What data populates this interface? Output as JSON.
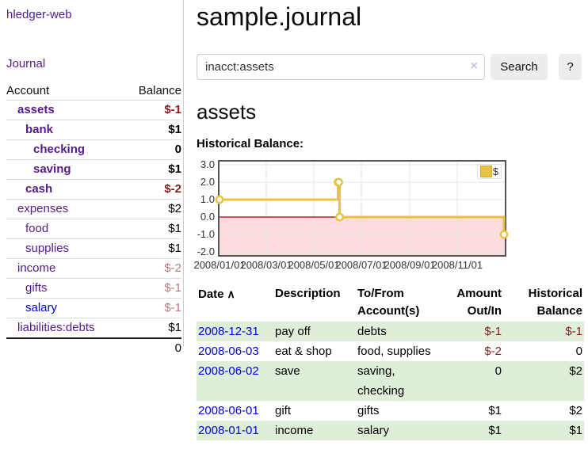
{
  "app": {
    "brand": "hledger-web",
    "nav_journal": "Journal"
  },
  "colors": {
    "link_purple": "#551A8B",
    "link_blue": "#0000e8",
    "negative_red": "#8b1a1a",
    "negative_light_red": "#bb7878",
    "row_green": "#deeed9",
    "series_gold": "#E8C240",
    "negative_region_pink": "#FBDBDB",
    "zero_line_red": "#A40000"
  },
  "sidebar": {
    "accounts_header": {
      "account": "Account",
      "balance": "Balance"
    },
    "accounts": [
      {
        "name": "assets",
        "balance": "$-1",
        "indent": 1,
        "bold": true,
        "balance_style": "negative"
      },
      {
        "name": "bank",
        "balance": "$1",
        "indent": 2,
        "bold": true,
        "balance_style": "normal"
      },
      {
        "name": "checking",
        "balance": "0",
        "indent": 3,
        "bold": true,
        "balance_style": "normal"
      },
      {
        "name": "saving",
        "balance": "$1",
        "indent": 3,
        "bold": true,
        "balance_style": "normal"
      },
      {
        "name": "cash",
        "balance": "$-2",
        "indent": 2,
        "bold": true,
        "balance_style": "negative"
      },
      {
        "name": "expenses",
        "balance": "$2",
        "indent": 1,
        "bold": false,
        "balance_style": "normal"
      },
      {
        "name": "food",
        "balance": "$1",
        "indent": 2,
        "bold": false,
        "balance_style": "normal"
      },
      {
        "name": "supplies",
        "balance": "$1",
        "indent": 2,
        "bold": false,
        "balance_style": "normal"
      },
      {
        "name": "income",
        "balance": "$-2",
        "indent": 1,
        "bold": false,
        "balance_style": "negative-light"
      },
      {
        "name": "gifts",
        "balance": "$-1",
        "indent": 2,
        "bold": false,
        "balance_style": "negative-light"
      },
      {
        "name": "salary",
        "balance": "$-1",
        "indent": 2,
        "bold": false,
        "balance_style": "negative-light",
        "link_style": "unvisited"
      },
      {
        "name": "liabilities:debts",
        "balance": "$1",
        "indent": 1,
        "bold": false,
        "balance_style": "normal"
      }
    ],
    "total": "0"
  },
  "main": {
    "title": "sample.journal",
    "search": {
      "value": "inacct:assets",
      "clear_icon": "×",
      "search_button": "Search",
      "help_button": "?"
    },
    "account_heading": "assets",
    "chart_title": "Historical Balance:"
  },
  "chart_data": {
    "type": "line",
    "step": true,
    "title": "Historical Balance:",
    "legend": {
      "label": "$",
      "position": "top-right"
    },
    "series": [
      {
        "name": "$",
        "color": "#E8C240",
        "points": [
          {
            "x": "2008-01-01",
            "y": 1
          },
          {
            "x": "2008-06-01",
            "y": 2
          },
          {
            "x": "2008-06-02",
            "y": 2
          },
          {
            "x": "2008-06-03",
            "y": 0
          },
          {
            "x": "2008-12-31",
            "y": -1
          }
        ]
      }
    ],
    "xlim": [
      "2008-01-01",
      "2009-01-01"
    ],
    "ylim": [
      -2,
      3
    ],
    "x_ticks": [
      {
        "label": "2008/01/01",
        "date": "2008-01-01"
      },
      {
        "label": "2008/03/01",
        "date": "2008-03-01"
      },
      {
        "label": "2008/05/01",
        "date": "2008-05-01"
      },
      {
        "label": "2008/07/01",
        "date": "2008-07-01"
      },
      {
        "label": "2008/09/01",
        "date": "2008-09-01"
      },
      {
        "label": "2008/11/01",
        "date": "2008-11-01"
      }
    ],
    "y_ticks": [
      {
        "label": "3.0",
        "value": 3
      },
      {
        "label": "2.0",
        "value": 2
      },
      {
        "label": "1.0",
        "value": 1
      },
      {
        "label": "0.0",
        "value": 0
      },
      {
        "label": "-1.0",
        "value": -1
      },
      {
        "label": "-2.0",
        "value": -2
      }
    ],
    "grid": true,
    "negative_region_color": "#FBDBDB",
    "zero_line_color": "#A40000"
  },
  "register": {
    "headers": {
      "date": "Date",
      "sort_icon": "∧",
      "description": "Description",
      "accounts": "To/From Account(s)",
      "amount": "Amount Out/In",
      "balance": "Historical Balance"
    },
    "rows": [
      {
        "date": "2008-12-31",
        "description": "pay off",
        "accounts": "debts",
        "amount": "$-1",
        "amount_style": "negative",
        "balance": "$-1",
        "balance_style": "negative"
      },
      {
        "date": "2008-06-03",
        "description": "eat & shop",
        "accounts": "food, supplies",
        "amount": "$-2",
        "amount_style": "negative",
        "balance": "0",
        "balance_style": "normal"
      },
      {
        "date": "2008-06-02",
        "description": "save",
        "accounts": "saving, checking",
        "amount": "0",
        "amount_style": "normal",
        "balance": "$2",
        "balance_style": "normal"
      },
      {
        "date": "2008-06-01",
        "description": "gift",
        "accounts": "gifts",
        "amount": "$1",
        "amount_style": "normal",
        "balance": "$2",
        "balance_style": "normal"
      },
      {
        "date": "2008-01-01",
        "description": "income",
        "accounts": "salary",
        "amount": "$1",
        "amount_style": "normal",
        "balance": "$1",
        "balance_style": "normal"
      }
    ]
  }
}
